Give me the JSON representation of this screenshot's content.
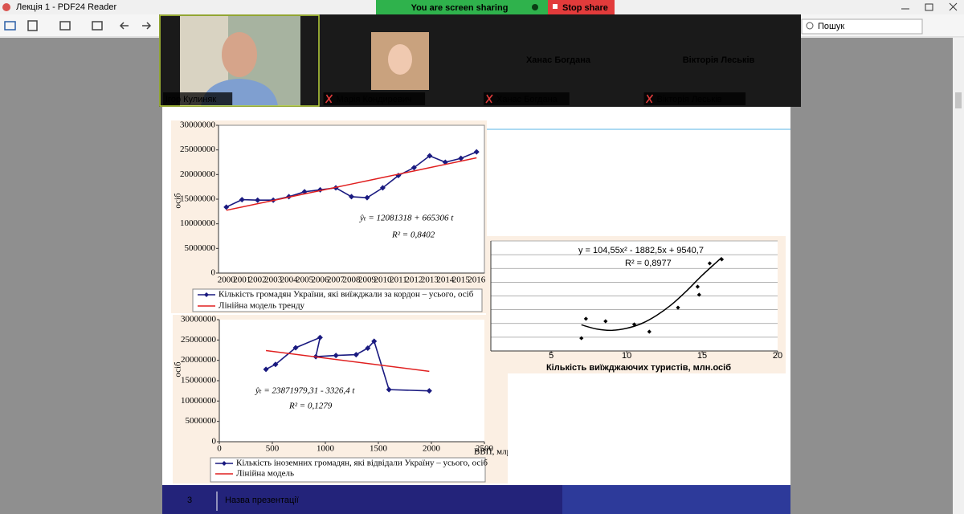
{
  "window": {
    "title": "Лекція 1 - PDF24 Reader"
  },
  "sharing": {
    "status": "You are screen sharing",
    "stop": "Stop share"
  },
  "search": {
    "placeholder": "Пошук"
  },
  "participants": [
    {
      "name": "Ігор Кулиняк"
    },
    {
      "name": "Марія Кондиревич"
    },
    {
      "name": "Ханас Богдана"
    },
    {
      "name": "Вікторія Леськів"
    }
  ],
  "slide": {
    "number": 3,
    "footer": "Назва презентації"
  },
  "chart_data": [
    {
      "type": "line",
      "ylabel": "осіб",
      "categories": [
        "2000",
        "2001",
        "2002",
        "2003",
        "2004",
        "2005",
        "2006",
        "2007",
        "2008",
        "2009",
        "2010",
        "2011",
        "2012",
        "2013",
        "2014",
        "2015",
        "2016"
      ],
      "series": [
        {
          "name": "Кількість громадян України, які виїжджали за кордон – усього, осіб",
          "color": "#1a1a80",
          "marker": true,
          "values": [
            13400000,
            14900000,
            14800000,
            14800000,
            15500000,
            16500000,
            16900000,
            17300000,
            15500000,
            15300000,
            17300000,
            19800000,
            21400000,
            23800000,
            22500000,
            23300000,
            24600000
          ]
        },
        {
          "name": "Лінійна модель тренду",
          "color": "#e02020",
          "marker": false,
          "values": [
            12746624,
            13411930,
            14077236,
            14742542,
            15407848,
            16073154,
            16738460,
            17403766,
            18069072,
            18734378,
            19399684,
            20064990,
            20730296,
            21395602,
            22060908,
            22726214,
            23391520
          ]
        }
      ],
      "ylim": [
        0,
        30000000
      ],
      "yticks": [
        0,
        5000000,
        10000000,
        15000000,
        20000000,
        25000000,
        30000000
      ],
      "annotations": [
        "ŷₜ = 12081318 + 665306 t",
        "R² = 0,8402"
      ]
    },
    {
      "type": "scatter",
      "ylabel": "осіб",
      "xlabel": "ВВП, млрд грн",
      "series": [
        {
          "name": "Кількість іноземних громадян, які відвідали Україну – усього, осіб",
          "color": "#1a1a80",
          "marker": true,
          "line": true,
          "x": [
            440,
            530,
            720,
            950,
            910,
            1100,
            1290,
            1400,
            1460,
            1600,
            1980
          ],
          "values": [
            17800000,
            19000000,
            23100000,
            25600000,
            20900000,
            21200000,
            21400000,
            23000000,
            24700000,
            12800000,
            12500000
          ]
        },
        {
          "name": "Лінійна модель",
          "color": "#e02020",
          "marker": false,
          "line": true,
          "x": [
            440,
            1980
          ],
          "values": [
            22400000,
            17300000
          ]
        }
      ],
      "xlim": [
        0,
        2500
      ],
      "xticks": [
        0,
        500,
        1000,
        1500,
        2000,
        2500
      ],
      "ylim": [
        0,
        30000000
      ],
      "yticks": [
        0,
        5000000,
        10000000,
        15000000,
        20000000,
        25000000,
        30000000
      ],
      "annotations": [
        "ŷₜ = 23871979,31 - 3326,4 t",
        "R² = 0,1279"
      ]
    },
    {
      "type": "scatter",
      "xlabel": "Кількість виїжджаючих туристів, млн.осіб",
      "series": [
        {
          "color": "#000000",
          "marker": true,
          "line": false,
          "x": [
            7,
            7.3,
            8.6,
            10.5,
            11.5,
            13.4,
            14.7,
            14.8,
            15.5,
            16.3
          ],
          "values": [
            930,
            2340,
            2160,
            1930,
            1400,
            3150,
            4670,
            4090,
            6370,
            6660
          ]
        },
        {
          "color": "#000000",
          "marker": false,
          "line": true,
          "smooth": true,
          "x": [
            7,
            8,
            9,
            10,
            11,
            12,
            13,
            14,
            15,
            16.3
          ],
          "values": [
            1900,
            1600,
            1500,
            1650,
            2000,
            2600,
            3400,
            4400,
            5500,
            6800
          ]
        }
      ],
      "xlim": [
        1,
        20
      ],
      "xticks": [
        5,
        10,
        15,
        20
      ],
      "ylim": [
        0,
        8000
      ],
      "yticks": [
        0,
        1000,
        2000,
        3000,
        4000,
        5000,
        6000,
        7000,
        8000
      ],
      "ytick_labels": false,
      "grid": true,
      "annotations": [
        "y = 104,55x² - 1882,5x + 9540,7",
        "R² = 0,8977"
      ]
    }
  ]
}
